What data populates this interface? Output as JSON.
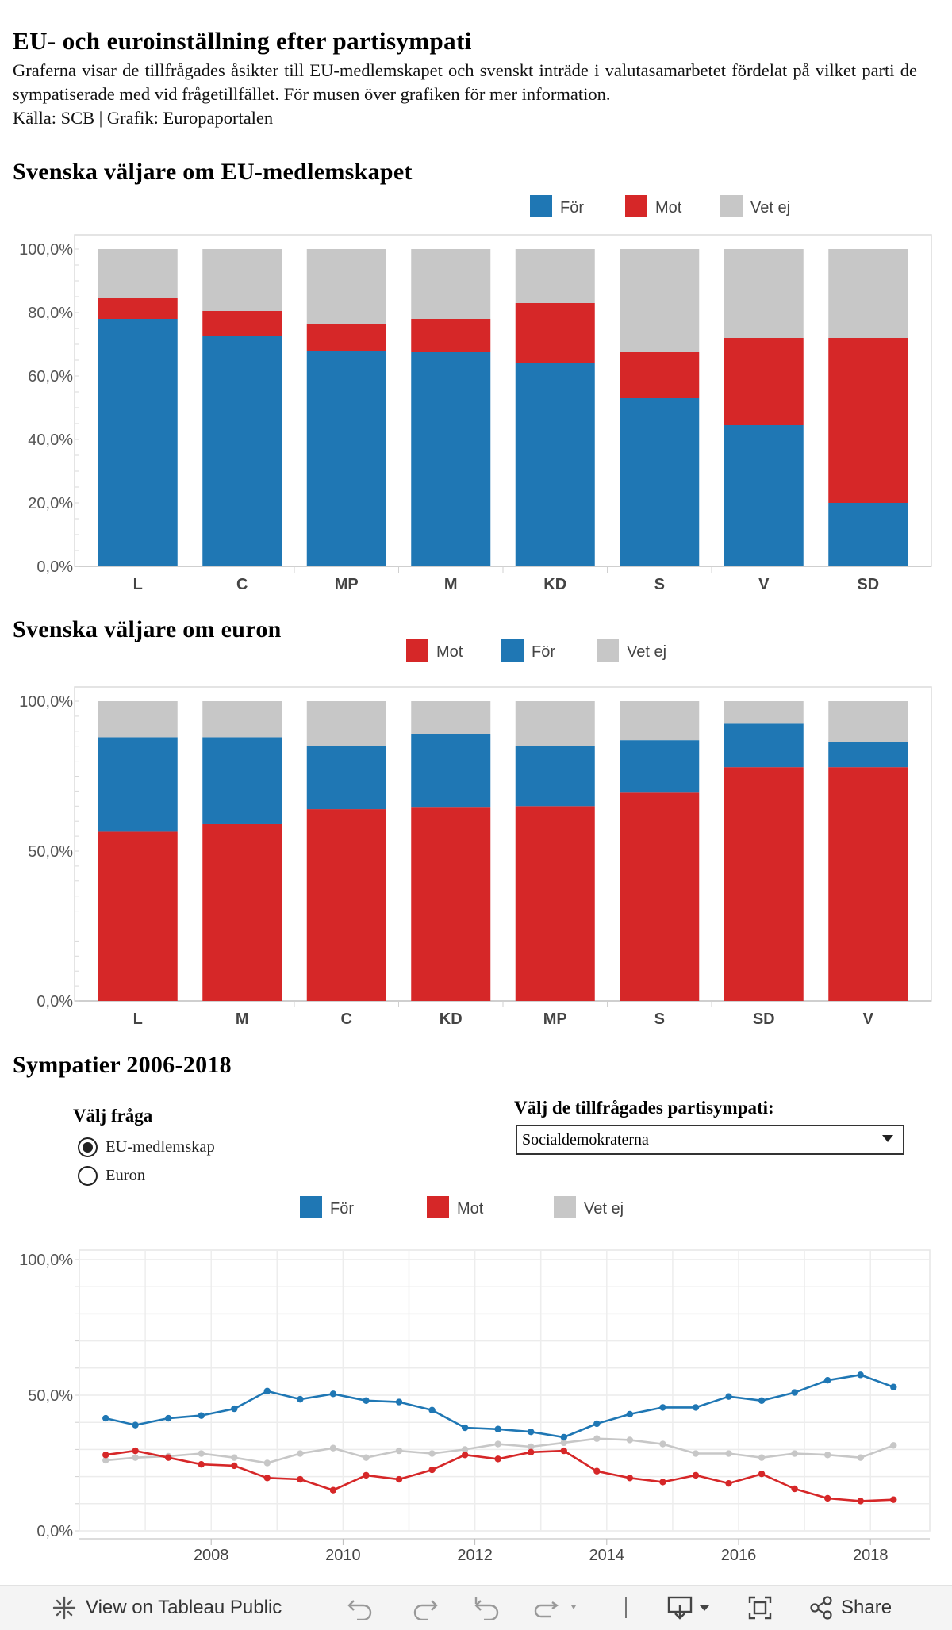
{
  "header": {
    "title": "EU- och euroinställning efter partisympati",
    "description": "Graferna visar de tillfrågades åsikter till EU-medlemskapet och svenskt inträde i valutasamarbetet fördelat på vilket parti de sympatiserade med vid frågetillfället. För musen över grafiken för mer information.",
    "source": "Källa: SCB | Grafik: Europaportalen"
  },
  "colors": {
    "for": "#1f77b4",
    "mot": "#d62728",
    "vetej": "#c7c7c7"
  },
  "section_eu": {
    "title": "Svenska väljare om EU-medlemskapet"
  },
  "section_euro": {
    "title": "Svenska väljare om euron"
  },
  "section_trend": {
    "title": "Sympatier 2006-2018"
  },
  "controls": {
    "question_label": "Välj fråga",
    "options": [
      {
        "label": "EU-medlemskap",
        "selected": true
      },
      {
        "label": "Euron",
        "selected": false
      }
    ],
    "party_label": "Välj de tillfrågades partisympati:",
    "party_selected": "Socialdemokraterna"
  },
  "chart_data": [
    {
      "type": "bar",
      "stacked": true,
      "categories": [
        "L",
        "C",
        "MP",
        "M",
        "KD",
        "S",
        "V",
        "SD"
      ],
      "series": [
        {
          "name": "För",
          "values": [
            78.0,
            72.5,
            68.0,
            67.5,
            64.0,
            53.0,
            44.5,
            20.0
          ]
        },
        {
          "name": "Mot",
          "values": [
            6.5,
            8.0,
            8.5,
            10.5,
            19.0,
            14.5,
            27.5,
            52.0
          ]
        },
        {
          "name": "Vet ej",
          "values": [
            15.5,
            19.5,
            23.5,
            22.0,
            17.0,
            32.5,
            28.0,
            28.0
          ]
        }
      ],
      "legend_order": [
        "För",
        "Mot",
        "Vet ej"
      ],
      "yticks": [
        "0,0%",
        "20,0%",
        "40,0%",
        "60,0%",
        "80,0%",
        "100,0%"
      ],
      "ylim": [
        0,
        100
      ],
      "legend": "top-right"
    },
    {
      "type": "bar",
      "stacked": true,
      "categories": [
        "L",
        "M",
        "C",
        "KD",
        "MP",
        "S",
        "SD",
        "V"
      ],
      "series": [
        {
          "name": "Mot",
          "values": [
            56.5,
            59.0,
            64.0,
            64.5,
            65.0,
            69.5,
            78.0,
            78.0
          ]
        },
        {
          "name": "För",
          "values": [
            31.5,
            29.0,
            21.0,
            24.5,
            20.0,
            17.5,
            14.5,
            8.5
          ]
        },
        {
          "name": "Vet ej",
          "values": [
            12.0,
            12.0,
            15.0,
            11.0,
            15.0,
            13.0,
            7.5,
            13.5
          ]
        }
      ],
      "legend_order": [
        "Mot",
        "För",
        "Vet ej"
      ],
      "yticks": [
        "0,0%",
        "50,0%",
        "100,0%"
      ],
      "ylim": [
        0,
        100
      ],
      "legend": "top-right"
    },
    {
      "type": "line",
      "x": [
        2006.4,
        2006.85,
        2007.35,
        2007.85,
        2008.35,
        2008.85,
        2009.35,
        2009.85,
        2010.35,
        2010.85,
        2011.35,
        2011.85,
        2012.35,
        2012.85,
        2013.35,
        2013.85,
        2014.35,
        2014.85,
        2015.35,
        2015.85,
        2016.35,
        2016.85,
        2017.35,
        2017.85,
        2018.35
      ],
      "series": [
        {
          "name": "För",
          "values": [
            41.5,
            39.0,
            41.5,
            42.5,
            45.0,
            51.5,
            48.5,
            50.5,
            48.0,
            47.5,
            44.5,
            38.0,
            37.5,
            36.5,
            34.5,
            39.5,
            43.0,
            45.5,
            45.5,
            49.5,
            48.0,
            51.0,
            55.5,
            57.5,
            53.0
          ]
        },
        {
          "name": "Mot",
          "values": [
            28.0,
            29.5,
            27.0,
            24.5,
            24.0,
            19.5,
            19.0,
            15.0,
            20.5,
            19.0,
            22.5,
            28.0,
            26.5,
            29.0,
            29.5,
            22.0,
            19.5,
            18.0,
            20.5,
            17.5,
            21.0,
            15.5,
            12.0,
            11.0,
            11.5
          ]
        },
        {
          "name": "Vet ej",
          "values": [
            26.0,
            27.0,
            27.5,
            28.5,
            27.0,
            25.0,
            28.5,
            30.5,
            27.0,
            29.5,
            28.5,
            30.0,
            32.0,
            31.0,
            32.5,
            34.0,
            33.5,
            32.0,
            28.5,
            28.5,
            27.0,
            28.5,
            28.0,
            27.0,
            31.5
          ]
        }
      ],
      "legend_order": [
        "För",
        "Mot",
        "Vet ej"
      ],
      "xticks": [
        "2008",
        "2010",
        "2012",
        "2014",
        "2016",
        "2018"
      ],
      "xtick_values": [
        2008,
        2010,
        2012,
        2014,
        2016,
        2018
      ],
      "xlim": [
        2006.0,
        2018.9
      ],
      "yticks": [
        "0,0%",
        "50,0%",
        "100,0%"
      ],
      "ylim": [
        0,
        100
      ],
      "grid": true,
      "legend": "top"
    }
  ],
  "toolbar": {
    "view_label": "View on Tableau Public",
    "share_label": "Share",
    "icons": [
      "tableau-logo-icon",
      "undo-icon",
      "redo-icon",
      "revert-icon",
      "refresh-icon",
      "download-icon",
      "fullscreen-icon",
      "share-icon"
    ]
  }
}
